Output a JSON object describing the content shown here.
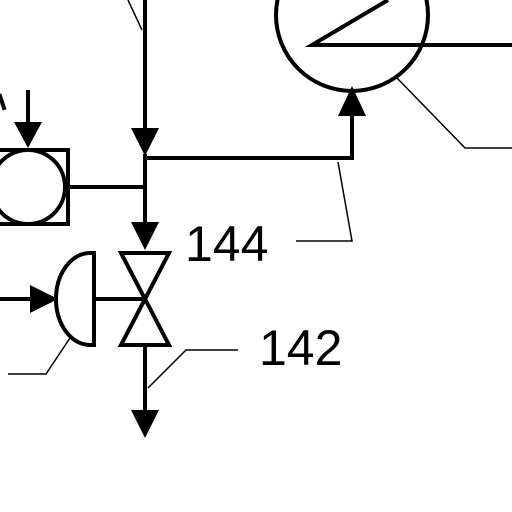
{
  "labels": {
    "label_144": "144",
    "label_142": "142"
  },
  "colors": {
    "ink": "#000000",
    "background": "#ffffff"
  }
}
